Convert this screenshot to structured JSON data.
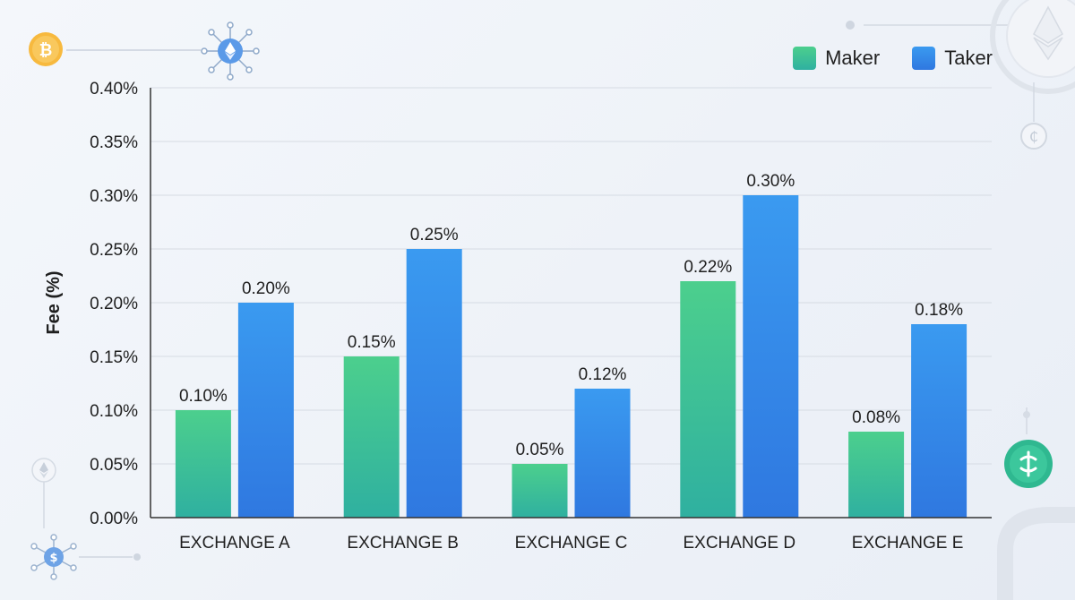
{
  "chart_data": {
    "type": "bar",
    "categories": [
      "EXCHANGE A",
      "EXCHANGE B",
      "EXCHANGE C",
      "EXCHANGE D",
      "EXCHANGE E"
    ],
    "series": [
      {
        "name": "Maker",
        "values": [
          0.1,
          0.15,
          0.05,
          0.22,
          0.08
        ],
        "labels": [
          "0.10%",
          "0.15%",
          "0.05%",
          "0.22%",
          "0.08%"
        ]
      },
      {
        "name": "Taker",
        "values": [
          0.2,
          0.25,
          0.12,
          0.3,
          0.18
        ],
        "labels": [
          "0.20%",
          "0.25%",
          "0.12%",
          "0.30%",
          "0.18%"
        ]
      }
    ],
    "ylabel": "Fee (%)",
    "xlabel": "",
    "ylim": [
      0,
      0.4
    ],
    "yticks": [
      0,
      0.05,
      0.1,
      0.15,
      0.2,
      0.25,
      0.3,
      0.35,
      0.4
    ],
    "ytick_labels": [
      "0.00%",
      "0.05%",
      "0.10%",
      "0.15%",
      "0.20%",
      "0.25%",
      "0.30%",
      "0.35%",
      "0.40%"
    ],
    "grid": true,
    "legend_position": "top-right",
    "colors": {
      "maker_top": "#4ccf8d",
      "maker_bottom": "#2fb0a0",
      "taker_top": "#3a9af0",
      "taker_bottom": "#2f78e0",
      "grid": "#d6dbe3",
      "axis": "#333333",
      "text": "#1f1f1f"
    }
  }
}
